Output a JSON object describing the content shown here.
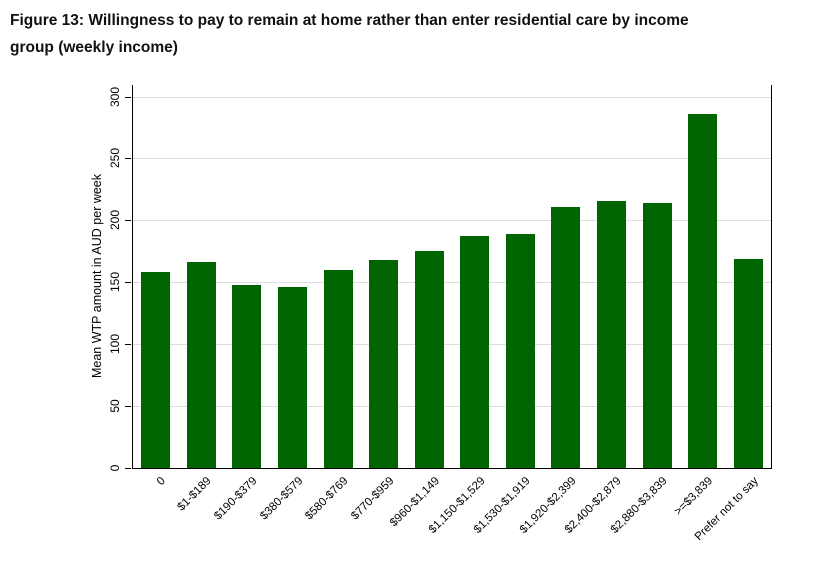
{
  "figure": {
    "title_line1": "Figure 13: Willingness to pay to remain at home rather than enter residential care by income",
    "title_line2": "group (weekly income)"
  },
  "chart_data": {
    "type": "bar",
    "title": "Figure 13: Willingness to pay to remain at home rather than enter residential care by income group (weekly income)",
    "xlabel": "",
    "ylabel": "Mean WTP amount in AUD per week",
    "ylim": [
      0,
      300
    ],
    "yticks": [
      0,
      50,
      100,
      150,
      200,
      250,
      300
    ],
    "grid": true,
    "legend": "none",
    "bar_color": "#006400",
    "grid_color": "#dedede",
    "axis_color": "#000000",
    "categories": [
      "0",
      "$1-$189",
      "$190-$379",
      "$380-$579",
      "$580-$769",
      "$770-$959",
      "$960-$1,149",
      "$1,150-$1,529",
      "$1,530-$1,919",
      "$1,920-$2,399",
      "$2,400-$2,879",
      "$2,880-$3,839",
      ">=$3,839",
      "Prefer not to say"
    ],
    "values": [
      158,
      166,
      148,
      146,
      160,
      168,
      175,
      187,
      189,
      211,
      216,
      214,
      286,
      169
    ]
  }
}
